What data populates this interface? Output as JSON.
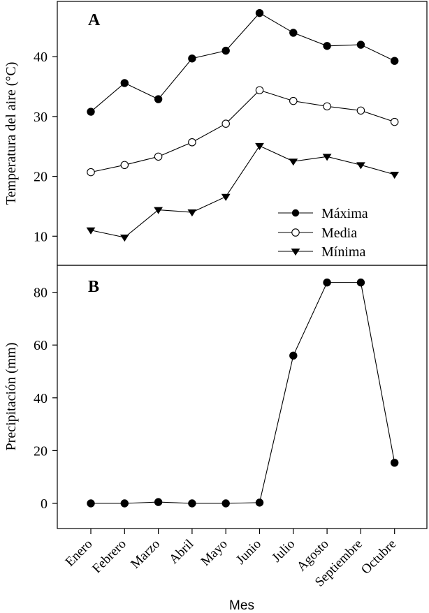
{
  "chart_data": [
    {
      "panel_label": "A",
      "type": "line",
      "ylabel": "Temperatura del aire (°C)",
      "ylim": [
        6,
        50
      ],
      "yticks": [
        10,
        20,
        30,
        40
      ],
      "categories": [
        "Enero",
        "Febrero",
        "Marzo",
        "Abril",
        "Mayo",
        "Junio",
        "Julio",
        "Agosto",
        "Septiembre",
        "Octubre"
      ],
      "legend_position": "bottom-right",
      "series": [
        {
          "name": "Máxima",
          "marker": "filled-circle",
          "values": [
            30.8,
            35.6,
            32.9,
            39.7,
            41.0,
            47.3,
            44.0,
            41.8,
            42.0,
            39.3
          ]
        },
        {
          "name": "Media",
          "marker": "open-circle",
          "values": [
            20.7,
            21.9,
            23.3,
            25.7,
            28.8,
            34.4,
            32.6,
            31.7,
            31.0,
            29.1
          ]
        },
        {
          "name": "Mínima",
          "marker": "filled-triangle-down",
          "values": [
            11.0,
            9.8,
            14.4,
            14.0,
            16.6,
            25.1,
            22.5,
            23.3,
            21.9,
            20.3
          ]
        }
      ]
    },
    {
      "panel_label": "B",
      "type": "line",
      "ylabel": "Precipitación (mm)",
      "xlabel": "Mes",
      "ylim": [
        -10,
        90
      ],
      "yticks": [
        0,
        20,
        40,
        60,
        80
      ],
      "categories": [
        "Enero",
        "Febrero",
        "Marzo",
        "Abril",
        "Mayo",
        "Junio",
        "Julio",
        "Agosto",
        "Septiembre",
        "Octubre"
      ],
      "series": [
        {
          "name": "Precipitación",
          "marker": "filled-circle",
          "values": [
            0.0,
            0.0,
            0.5,
            0.0,
            0.0,
            0.3,
            56.0,
            83.7,
            83.7,
            15.4
          ]
        }
      ]
    }
  ]
}
